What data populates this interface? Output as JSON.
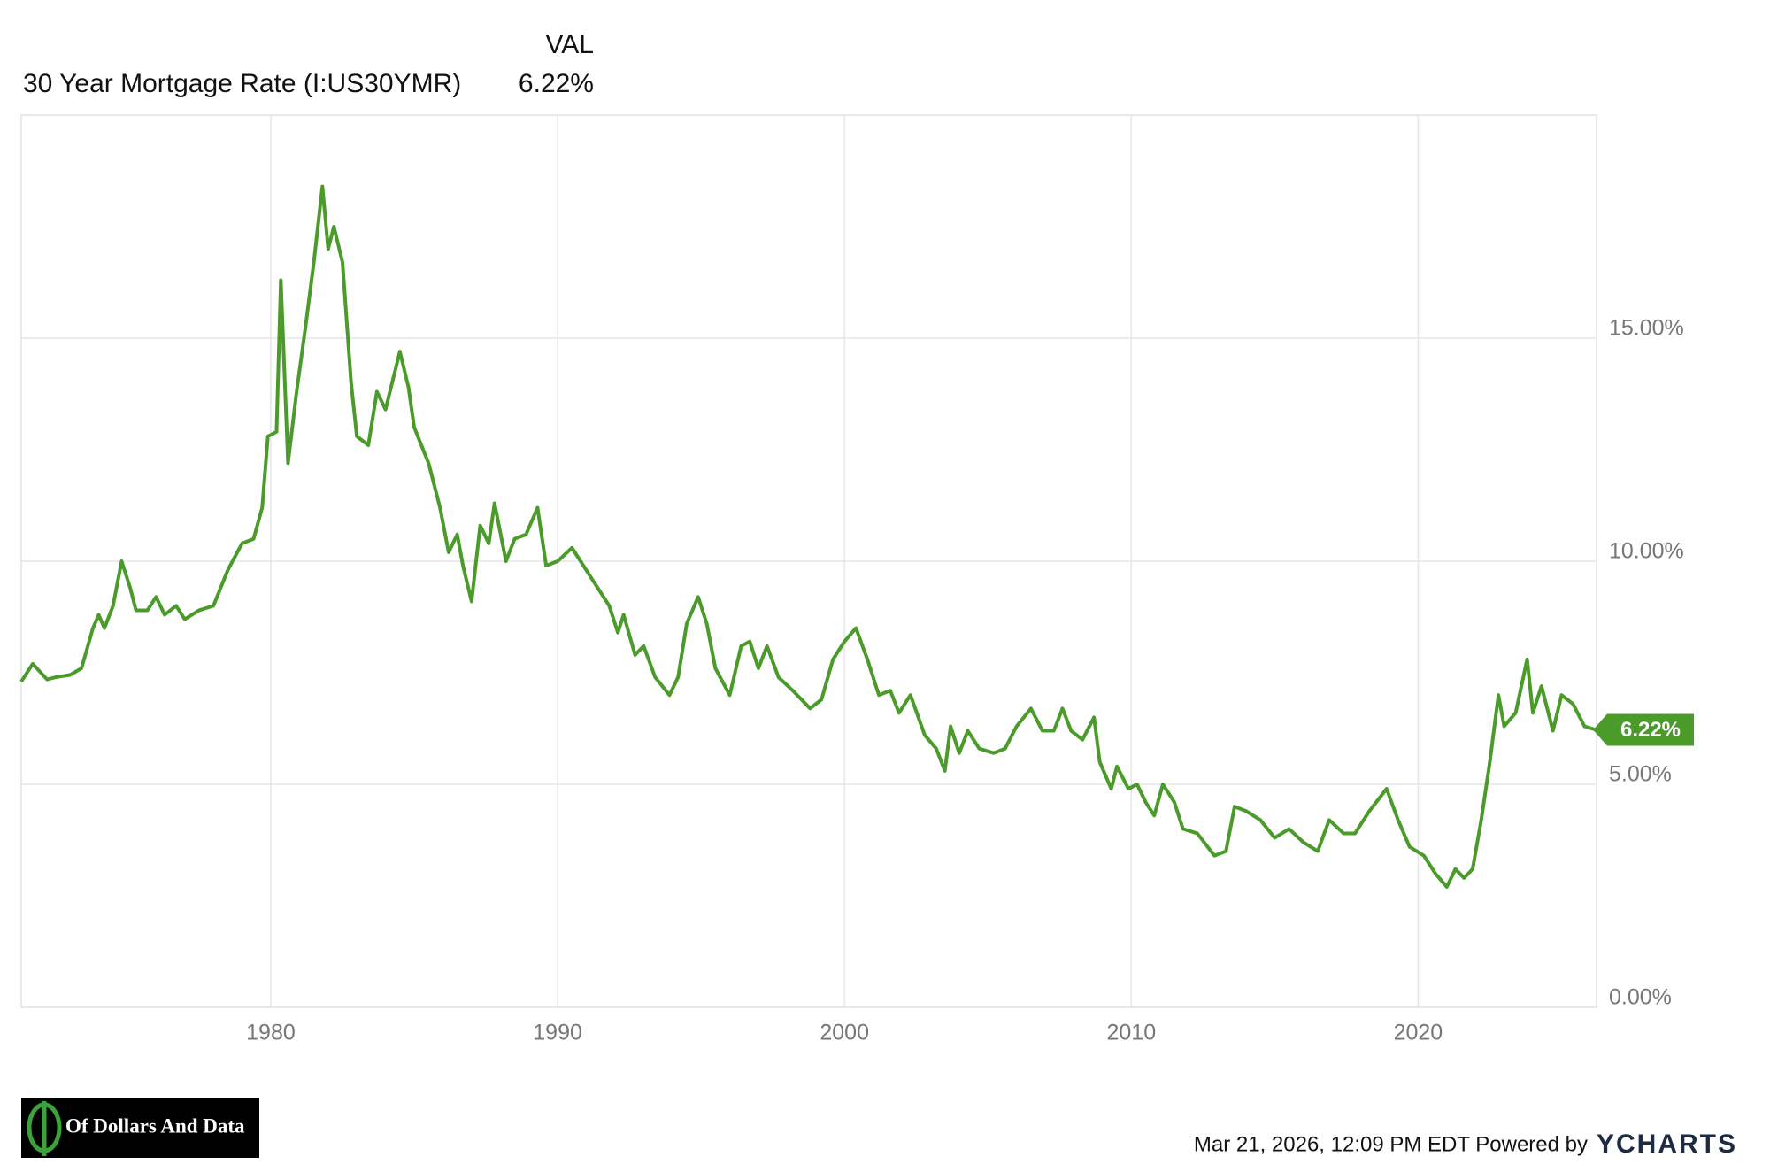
{
  "chart_data": {
    "type": "line",
    "header": "VAL",
    "current_value_label": "6.22%",
    "x": [
      1971.3,
      1971.7,
      1972.2,
      1972.5,
      1973.0,
      1973.4,
      1973.8,
      1974.0,
      1974.2,
      1974.5,
      1974.8,
      1975.1,
      1975.3,
      1975.7,
      1976.0,
      1976.3,
      1976.7,
      1977.0,
      1977.5,
      1978.0,
      1978.5,
      1979.0,
      1979.4,
      1979.7,
      1979.9,
      1980.2,
      1980.35,
      1980.6,
      1980.9,
      1981.2,
      1981.5,
      1981.8,
      1982.0,
      1982.2,
      1982.5,
      1982.8,
      1983.0,
      1983.4,
      1983.7,
      1984.0,
      1984.5,
      1984.8,
      1985.0,
      1985.5,
      1985.9,
      1986.2,
      1986.5,
      1986.7,
      1987.0,
      1987.3,
      1987.6,
      1987.8,
      1988.2,
      1988.5,
      1988.9,
      1989.3,
      1989.6,
      1990.0,
      1990.5,
      1990.9,
      1991.3,
      1991.8,
      1992.1,
      1992.3,
      1992.7,
      1993.0,
      1993.4,
      1993.9,
      1994.2,
      1994.5,
      1994.9,
      1995.2,
      1995.5,
      1996.0,
      1996.4,
      1996.7,
      1997.0,
      1997.3,
      1997.7,
      1998.2,
      1998.8,
      1999.2,
      1999.6,
      2000.0,
      2000.4,
      2000.8,
      2001.2,
      2001.6,
      2001.9,
      2002.3,
      2002.8,
      2003.2,
      2003.5,
      2003.7,
      2004.0,
      2004.3,
      2004.7,
      2005.2,
      2005.6,
      2006.0,
      2006.5,
      2006.9,
      2007.3,
      2007.6,
      2007.9,
      2008.3,
      2008.7,
      2008.9,
      2009.3,
      2009.5,
      2009.9,
      2010.2,
      2010.5,
      2010.8,
      2011.1,
      2011.5,
      2011.8,
      2012.3,
      2012.9,
      2013.3,
      2013.6,
      2014.0,
      2014.5,
      2015.0,
      2015.5,
      2016.0,
      2016.5,
      2016.9,
      2017.4,
      2017.8,
      2018.3,
      2018.9,
      2019.3,
      2019.7,
      2020.2,
      2020.6,
      2021.0,
      2021.3,
      2021.6,
      2021.9,
      2022.2,
      2022.5,
      2022.8,
      2023.0,
      2023.4,
      2023.8,
      2024.0,
      2024.3,
      2024.7,
      2025.0,
      2025.4,
      2025.8,
      2026.2
    ],
    "series": [
      {
        "name": "30 Year Mortgage Rate (I:US30YMR)",
        "color": "#4b9b2b",
        "values": [
          7.3,
          7.7,
          7.35,
          7.4,
          7.45,
          7.6,
          8.5,
          8.8,
          8.5,
          9.0,
          10.0,
          9.4,
          8.9,
          8.9,
          9.2,
          8.8,
          9.0,
          8.7,
          8.9,
          9.0,
          9.8,
          10.4,
          10.5,
          11.2,
          12.8,
          12.9,
          16.3,
          12.2,
          13.8,
          15.2,
          16.7,
          18.4,
          17.0,
          17.5,
          16.7,
          14.0,
          12.8,
          12.6,
          13.8,
          13.4,
          14.7,
          13.9,
          13.0,
          12.2,
          11.2,
          10.2,
          10.6,
          9.9,
          9.1,
          10.8,
          10.4,
          11.3,
          10.0,
          10.5,
          10.6,
          11.2,
          9.9,
          10.0,
          10.3,
          9.9,
          9.5,
          9.0,
          8.4,
          8.8,
          7.9,
          8.1,
          7.4,
          7.0,
          7.4,
          8.6,
          9.2,
          8.6,
          7.6,
          7.0,
          8.1,
          8.2,
          7.6,
          8.1,
          7.4,
          7.1,
          6.7,
          6.9,
          7.8,
          8.2,
          8.5,
          7.8,
          7.0,
          7.1,
          6.6,
          7.0,
          6.1,
          5.8,
          5.3,
          6.3,
          5.7,
          6.2,
          5.8,
          5.7,
          5.8,
          6.3,
          6.7,
          6.2,
          6.2,
          6.7,
          6.2,
          6.0,
          6.5,
          5.5,
          4.9,
          5.4,
          4.9,
          5.0,
          4.6,
          4.3,
          5.0,
          4.6,
          4.0,
          3.9,
          3.4,
          3.5,
          4.5,
          4.4,
          4.2,
          3.8,
          4.0,
          3.7,
          3.5,
          4.2,
          3.9,
          3.9,
          4.4,
          4.9,
          4.2,
          3.6,
          3.4,
          3.0,
          2.7,
          3.1,
          2.9,
          3.1,
          4.2,
          5.5,
          7.0,
          6.3,
          6.6,
          7.8,
          6.6,
          7.2,
          6.2,
          7.0,
          6.8,
          6.3,
          6.22
        ]
      }
    ],
    "xlim": [
      1971.3,
      2026.22
    ],
    "xticks": [
      1980,
      1990,
      2000,
      2010,
      2020
    ],
    "ylim": [
      0,
      20
    ],
    "yticks": [
      {
        "value": 0,
        "label": "0.00%"
      },
      {
        "value": 5,
        "label": "5.00%"
      },
      {
        "value": 10,
        "label": "10.00%"
      },
      {
        "value": 15,
        "label": "15.00%"
      }
    ],
    "grid": true,
    "timestamp": "Mar 21, 2026, 12:09 PM EDT Powered by",
    "brand": "YCHARTS",
    "logo_text": "Of Dollars And Data"
  }
}
